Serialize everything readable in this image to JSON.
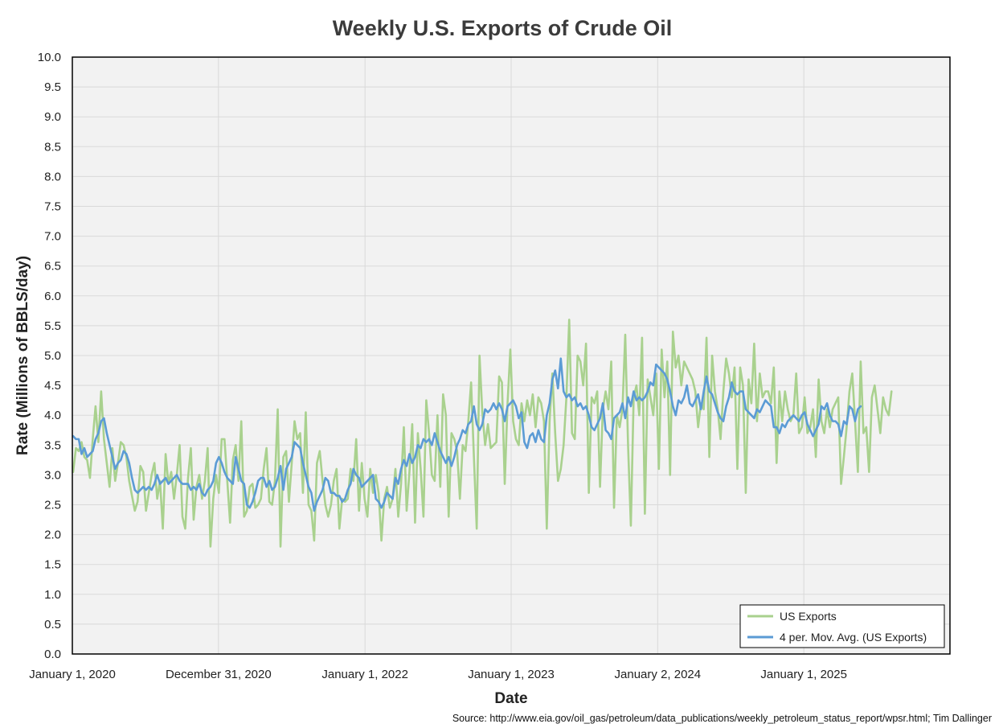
{
  "chart_data": {
    "type": "line",
    "title": "Weekly U.S. Exports of Crude Oil",
    "xlabel": "Date",
    "ylabel": "Rate (Millions of BBLS/day)",
    "source": "Source: http://www.eia.gov/oil_gas/petroleum/data_publications/weekly_petroleum_status_report/wpsr.html; Tim Dallinger",
    "ylim": [
      0,
      10
    ],
    "ytick_step": 0.5,
    "yticks": [
      "0.0",
      "0.5",
      "1.0",
      "1.5",
      "2.0",
      "2.5",
      "3.0",
      "3.5",
      "4.0",
      "4.5",
      "5.0",
      "5.5",
      "6.0",
      "6.5",
      "7.0",
      "7.5",
      "8.0",
      "8.5",
      "9.0",
      "9.5",
      "10.0"
    ],
    "xlim": [
      "2020-01-01",
      "2026-01-01"
    ],
    "xticks": [
      {
        "date": "2020-01-01",
        "label": "January 1, 2020"
      },
      {
        "date": "2020-12-31",
        "label": "December 31, 2020"
      },
      {
        "date": "2022-01-01",
        "label": "January 1, 2022"
      },
      {
        "date": "2023-01-01",
        "label": "January 1, 2023"
      },
      {
        "date": "2024-01-02",
        "label": "January 2, 2024"
      },
      {
        "date": "2025-01-01",
        "label": "January 1, 2025"
      }
    ],
    "grid": true,
    "legend_position": "bottom-right",
    "x_start": "2020-01-03",
    "x_step_days": 7,
    "series": [
      {
        "name": "US Exports",
        "color": "#a9d18e",
        "values": [
          3.05,
          3.45,
          3.4,
          3.55,
          3.3,
          3.25,
          2.95,
          3.6,
          4.15,
          3.55,
          4.4,
          3.6,
          3.2,
          2.8,
          3.45,
          2.9,
          3.2,
          3.55,
          3.5,
          3.3,
          2.9,
          2.65,
          2.4,
          2.55,
          3.15,
          3.05,
          2.4,
          2.7,
          3.0,
          3.2,
          2.6,
          2.9,
          2.1,
          3.35,
          2.85,
          3.05,
          2.6,
          3.0,
          3.5,
          2.3,
          2.1,
          2.95,
          3.45,
          2.25,
          2.8,
          3.0,
          2.6,
          2.9,
          3.45,
          1.8,
          2.6,
          3.0,
          2.7,
          3.6,
          3.6,
          2.9,
          2.2,
          3.25,
          3.5,
          2.9,
          3.9,
          2.3,
          2.4,
          2.8,
          2.85,
          2.45,
          2.5,
          2.6,
          3.1,
          3.45,
          2.55,
          2.5,
          2.9,
          4.1,
          1.8,
          3.3,
          3.4,
          2.55,
          3.2,
          3.9,
          3.6,
          3.7,
          2.7,
          4.05,
          2.5,
          2.4,
          1.9,
          3.2,
          3.4,
          2.9,
          2.5,
          2.3,
          2.5,
          2.9,
          3.1,
          2.1,
          2.6,
          2.55,
          2.6,
          3.1,
          2.9,
          3.6,
          2.4,
          3.2,
          2.6,
          2.3,
          3.1,
          2.7,
          3.0,
          2.7,
          1.9,
          2.6,
          2.8,
          2.45,
          2.6,
          3.1,
          2.3,
          2.85,
          3.8,
          2.4,
          3.05,
          3.85,
          2.2,
          3.7,
          3.1,
          2.3,
          4.25,
          3.7,
          3.0,
          2.9,
          4.0,
          2.8,
          4.35,
          4.0,
          2.3,
          3.7,
          3.6,
          3.4,
          2.6,
          3.5,
          3.4,
          3.9,
          4.55,
          3.3,
          2.1,
          5.0,
          4.05,
          3.5,
          3.85,
          3.45,
          3.5,
          3.55,
          4.65,
          4.55,
          2.85,
          4.2,
          5.1,
          3.9,
          3.6,
          3.5,
          4.2,
          3.9,
          4.25,
          4.0,
          4.35,
          3.8,
          4.3,
          4.2,
          3.9,
          2.1,
          3.9,
          4.7,
          3.7,
          2.9,
          3.1,
          3.5,
          4.3,
          5.6,
          3.7,
          3.6,
          5.0,
          4.9,
          4.5,
          5.2,
          2.7,
          4.3,
          4.2,
          4.4,
          2.8,
          4.1,
          4.4,
          4.1,
          4.9,
          2.45,
          4.0,
          3.8,
          4.1,
          5.35,
          3.5,
          2.15,
          4.3,
          4.5,
          4.0,
          5.3,
          2.35,
          4.6,
          4.3,
          4.0,
          4.7,
          3.1,
          5.1,
          4.3,
          4.9,
          3.0,
          5.4,
          4.8,
          5.0,
          4.5,
          4.9,
          4.8,
          4.7,
          4.6,
          4.4,
          3.8,
          4.2,
          4.1,
          5.3,
          3.3,
          5.0,
          4.4,
          4.1,
          3.6,
          4.4,
          4.95,
          4.7,
          4.3,
          4.8,
          3.1,
          4.8,
          4.5,
          2.7,
          4.6,
          4.2,
          5.2,
          3.9,
          4.7,
          4.3,
          4.4,
          4.4,
          4.2,
          4.8,
          3.2,
          4.4,
          3.9,
          4.4,
          4.1,
          3.9,
          4.0,
          4.7,
          3.7,
          3.8,
          4.3,
          3.7,
          3.8,
          4.1,
          3.3,
          4.6,
          3.9,
          3.7,
          4.1,
          3.8,
          4.1,
          4.2,
          4.3,
          2.85,
          3.3,
          3.8,
          4.4,
          4.7,
          3.9,
          3.05,
          4.9,
          3.7,
          3.8,
          3.05,
          4.3,
          4.5,
          4.1,
          3.7,
          4.3,
          4.1,
          4.0,
          4.4
        ]
      },
      {
        "name": "4 per. Mov. Avg. (US Exports)",
        "color": "#5b9bd5",
        "values": [
          3.65,
          3.6,
          3.6,
          3.35,
          3.45,
          3.3,
          3.35,
          3.4,
          3.6,
          3.7,
          3.9,
          3.95,
          3.7,
          3.5,
          3.3,
          3.1,
          3.2,
          3.25,
          3.4,
          3.35,
          3.2,
          2.95,
          2.75,
          2.7,
          2.75,
          2.8,
          2.75,
          2.8,
          2.75,
          2.85,
          3.0,
          2.85,
          2.9,
          2.95,
          2.85,
          2.9,
          2.95,
          3.0,
          2.9,
          2.85,
          2.85,
          2.85,
          2.75,
          2.8,
          2.75,
          2.85,
          2.7,
          2.65,
          2.75,
          2.8,
          2.9,
          3.2,
          3.3,
          3.2,
          3.05,
          2.95,
          2.9,
          2.85,
          3.3,
          3.1,
          2.9,
          2.85,
          2.5,
          2.45,
          2.55,
          2.7,
          2.9,
          2.95,
          2.95,
          2.8,
          2.9,
          2.75,
          2.8,
          2.95,
          3.15,
          2.75,
          3.1,
          3.2,
          3.3,
          3.55,
          3.5,
          3.45,
          3.2,
          3.0,
          2.8,
          2.7,
          2.4,
          2.55,
          2.65,
          2.75,
          2.95,
          2.9,
          2.7,
          2.7,
          2.65,
          2.65,
          2.55,
          2.6,
          2.75,
          2.85,
          3.1,
          3.0,
          2.95,
          2.8,
          2.85,
          2.9,
          2.95,
          3.0,
          2.6,
          2.55,
          2.45,
          2.55,
          2.7,
          2.65,
          2.6,
          2.95,
          2.85,
          3.1,
          3.25,
          3.15,
          3.35,
          3.2,
          3.3,
          3.5,
          3.45,
          3.6,
          3.55,
          3.6,
          3.5,
          3.7,
          3.55,
          3.4,
          3.3,
          3.2,
          3.3,
          3.15,
          3.3,
          3.5,
          3.6,
          3.75,
          3.7,
          3.85,
          3.9,
          4.15,
          3.85,
          3.75,
          3.85,
          4.1,
          4.05,
          4.1,
          4.2,
          4.1,
          4.2,
          4.1,
          3.9,
          4.15,
          4.2,
          4.25,
          4.15,
          3.95,
          4.05,
          3.55,
          3.45,
          3.65,
          3.7,
          3.55,
          3.75,
          3.6,
          3.55,
          4.0,
          4.2,
          4.6,
          4.75,
          4.45,
          4.95,
          4.4,
          4.3,
          4.35,
          4.25,
          4.3,
          4.15,
          4.2,
          4.1,
          4.15,
          4.0,
          3.8,
          3.75,
          3.85,
          3.95,
          4.2,
          3.75,
          3.7,
          3.6,
          3.95,
          4.0,
          4.05,
          4.2,
          3.95,
          4.3,
          4.15,
          4.4,
          4.25,
          4.3,
          4.25,
          4.3,
          4.4,
          4.55,
          4.5,
          4.85,
          4.8,
          4.75,
          4.7,
          4.6,
          4.4,
          4.15,
          4.0,
          4.25,
          4.2,
          4.3,
          4.5,
          4.2,
          4.15,
          4.25,
          4.35,
          4.1,
          4.4,
          4.65,
          4.4,
          4.35,
          4.2,
          4.05,
          3.95,
          3.9,
          4.15,
          4.3,
          4.55,
          4.4,
          4.35,
          4.4,
          4.4,
          4.1,
          4.05,
          4.0,
          3.95,
          4.1,
          4.05,
          4.15,
          4.25,
          4.2,
          4.15,
          3.8,
          3.8,
          3.7,
          3.85,
          3.8,
          3.9,
          3.95,
          4.0,
          3.95,
          3.9,
          4.0,
          4.05,
          3.85,
          3.75,
          3.65,
          3.75,
          3.85,
          4.15,
          4.1,
          4.2,
          4.0,
          3.9,
          3.9,
          3.85,
          3.65,
          3.9,
          3.85,
          4.15,
          4.1,
          3.9,
          4.1,
          4.15
        ]
      }
    ]
  }
}
